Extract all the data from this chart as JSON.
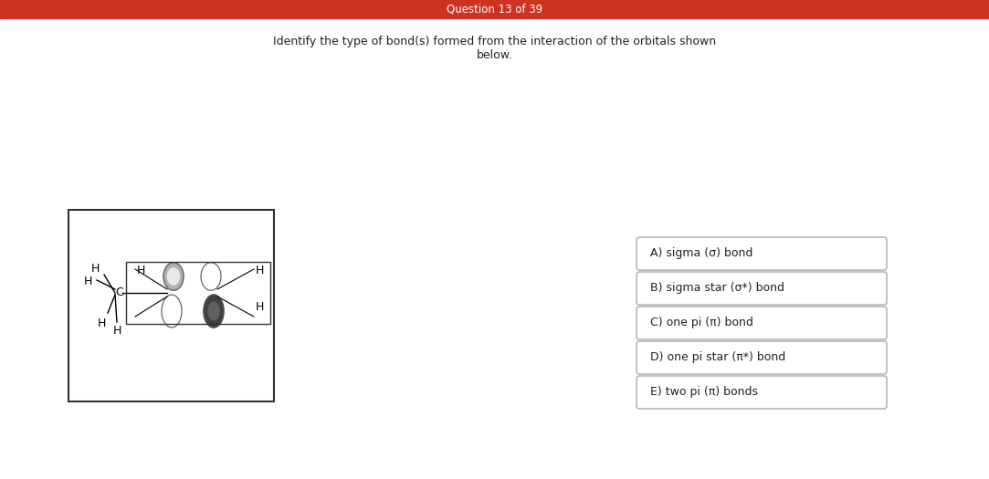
{
  "header_text": "Question 13 of 39",
  "header_bg": "#cc3322",
  "header_text_color": "#ffffff",
  "question_text_line1": "Identify the type of bond(s) formed from the interaction of the orbitals shown",
  "question_text_line2": "below.",
  "bg_color": "#ffffff",
  "answer_options": [
    "A) sigma (σ) bond",
    "B) sigma star (σ*) bond",
    "C) one pi (π) bond",
    "D) one pi star (π*) bond",
    "E) two pi (π) bonds"
  ],
  "box_border_color": "#aaaaaa",
  "box_bg_color": "#ffffff",
  "outer_box_border": "#333333",
  "inner_box_border": "#333333",
  "orbital_light_gray_top": "#b0b0b0",
  "orbital_light_gray_bot": "#d0d0d0",
  "orbital_dark_gray_top": "#606060",
  "orbital_dark_gray_bot": "#404040",
  "orbital_outline": "#555555"
}
